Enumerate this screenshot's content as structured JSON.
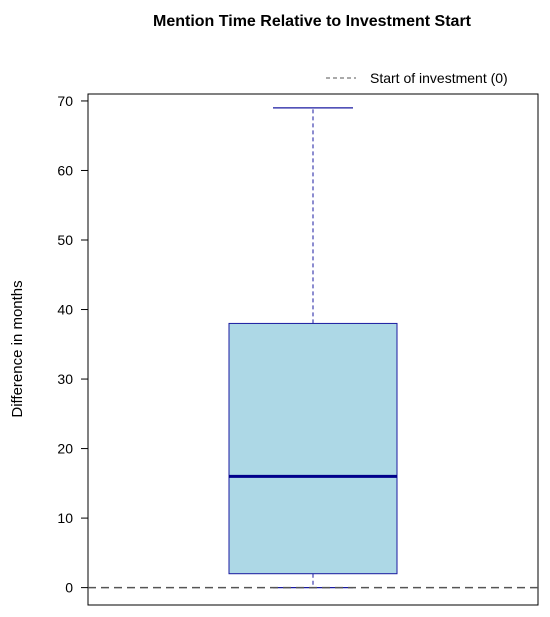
{
  "chart_data": {
    "type": "boxplot",
    "title": "Mention Time Relative to Investment Start",
    "xlabel": "",
    "ylabel": "Difference in months",
    "ylim": [
      -2.5,
      71
    ],
    "yticks": [
      0,
      10,
      20,
      30,
      40,
      50,
      60,
      70
    ],
    "yticklabels": [
      "0",
      "10",
      "20",
      "30",
      "40",
      "50",
      "60",
      "70"
    ],
    "box": {
      "min": 0,
      "q1": 2,
      "median": 16,
      "q3": 38,
      "max": 69
    },
    "reference_line": {
      "value": 0,
      "style": "dashed",
      "label": "Start of investment (0)"
    },
    "legend": {
      "position": "top-right",
      "entries": [
        {
          "label": "Start of investment (0)",
          "style": "dashed"
        }
      ]
    },
    "colors": {
      "box_fill": "#add8e6",
      "box_stroke": "#1a1aa0",
      "median": "#00008b",
      "whisker": "#1a1aa0",
      "reference": "#555555"
    }
  }
}
